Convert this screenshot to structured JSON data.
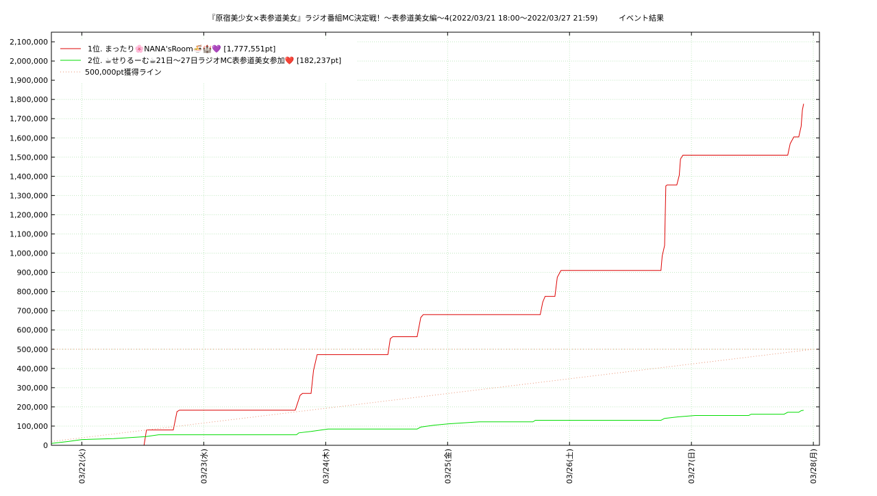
{
  "chart_data": {
    "type": "line",
    "title": "『原宿美少女×表参道美女』ラジオ番組MC決定戦！～表参道美女編～4(2022/03/21 18:00～2022/03/27 21:59)",
    "subtitle": "イベント結果",
    "xlim": [
      21.75,
      28.05
    ],
    "xticks": [
      {
        "value": 22,
        "label": "03/22(火)"
      },
      {
        "value": 23,
        "label": "03/23(水)"
      },
      {
        "value": 24,
        "label": "03/24(木)"
      },
      {
        "value": 25,
        "label": "03/25(金)"
      },
      {
        "value": 26,
        "label": "03/26(土)"
      },
      {
        "value": 27,
        "label": "03/27(日)"
      },
      {
        "value": 28,
        "label": "03/28(月)"
      }
    ],
    "ylim": [
      0,
      2150000
    ],
    "yticks": [
      0,
      {
        "value": 100000,
        "label": "100,000"
      },
      {
        "value": 200000,
        "label": "200,000"
      },
      {
        "value": 300000,
        "label": "300,000"
      },
      {
        "value": 400000,
        "label": "400,000"
      },
      {
        "value": 500000,
        "label": "500,000"
      },
      {
        "value": 600000,
        "label": "600,000"
      },
      {
        "value": 700000,
        "label": "700,000"
      },
      {
        "value": 800000,
        "label": "800,000"
      },
      {
        "value": 900000,
        "label": "900,000"
      },
      {
        "value": 1000000,
        "label": "1,000,000"
      },
      {
        "value": 1100000,
        "label": "1,100,000"
      },
      {
        "value": 1200000,
        "label": "1,200,000"
      },
      {
        "value": 1300000,
        "label": "1,300,000"
      },
      {
        "value": 1400000,
        "label": "1,400,000"
      },
      {
        "value": 1500000,
        "label": "1,500,000"
      },
      {
        "value": 1600000,
        "label": "1,600,000"
      },
      {
        "value": 1700000,
        "label": "1,700,000"
      },
      {
        "value": 1800000,
        "label": "1,800,000"
      },
      {
        "value": 1900000,
        "label": "1,900,000"
      },
      {
        "value": 2000000,
        "label": "2,000,000"
      },
      {
        "value": 2100000,
        "label": "2,100,000"
      }
    ],
    "grid": true,
    "legend": "top-left",
    "target_line": 500000,
    "series": [
      {
        "name": "1位. まったり🌸NANA'sRoom🍜🏰💜 [1,777,551pt]",
        "color": "#dd0000",
        "dash": "solid",
        "x": [
          22.51,
          22.53,
          22.75,
          22.78,
          22.8,
          23.75,
          23.79,
          23.81,
          23.88,
          23.9,
          23.93,
          24.51,
          24.53,
          24.55,
          24.75,
          24.78,
          24.8,
          25.76,
          25.78,
          25.8,
          25.88,
          25.9,
          25.93,
          26.75,
          26.76,
          26.78,
          26.79,
          26.8,
          26.88,
          26.9,
          26.91,
          26.93,
          27.79,
          27.81,
          27.84,
          27.88,
          27.9,
          27.91,
          27.92
        ],
        "values": [
          0,
          80000,
          80000,
          175000,
          183000,
          183000,
          260000,
          270000,
          270000,
          390000,
          472000,
          472000,
          555000,
          565000,
          565000,
          665000,
          680000,
          680000,
          745000,
          775000,
          775000,
          875000,
          910000,
          910000,
          985000,
          1040000,
          1350000,
          1355000,
          1355000,
          1405000,
          1490000,
          1510000,
          1510000,
          1570000,
          1605000,
          1605000,
          1660000,
          1745000,
          1777551
        ]
      },
      {
        "name": "2位. ☕せりるーむ☕21日〜27日ラジオMC表参道美女参加❤️ [182,237pt]",
        "color": "#00dd00",
        "dash": "solid",
        "x": [
          21.75,
          21.89,
          22.0,
          22.26,
          22.52,
          22.63,
          23.76,
          23.78,
          23.88,
          24.02,
          24.75,
          24.78,
          24.89,
          25.01,
          25.13,
          25.26,
          25.7,
          25.72,
          26.75,
          26.78,
          26.89,
          27.03,
          27.47,
          27.49,
          27.76,
          27.79,
          27.88,
          27.9,
          27.92
        ],
        "values": [
          10000,
          20000,
          30000,
          35000,
          45000,
          55000,
          55000,
          65000,
          72000,
          85000,
          85000,
          95000,
          105000,
          112000,
          117000,
          122000,
          122000,
          130000,
          130000,
          140000,
          148000,
          155000,
          155000,
          162000,
          162000,
          172000,
          172000,
          180000,
          182237
        ]
      },
      {
        "name": "500,000pt獲得ライン",
        "color": "#e89070",
        "dash": "dotted",
        "x": [
          21.75,
          28.0
        ],
        "values": [
          20000,
          500000
        ]
      }
    ]
  }
}
